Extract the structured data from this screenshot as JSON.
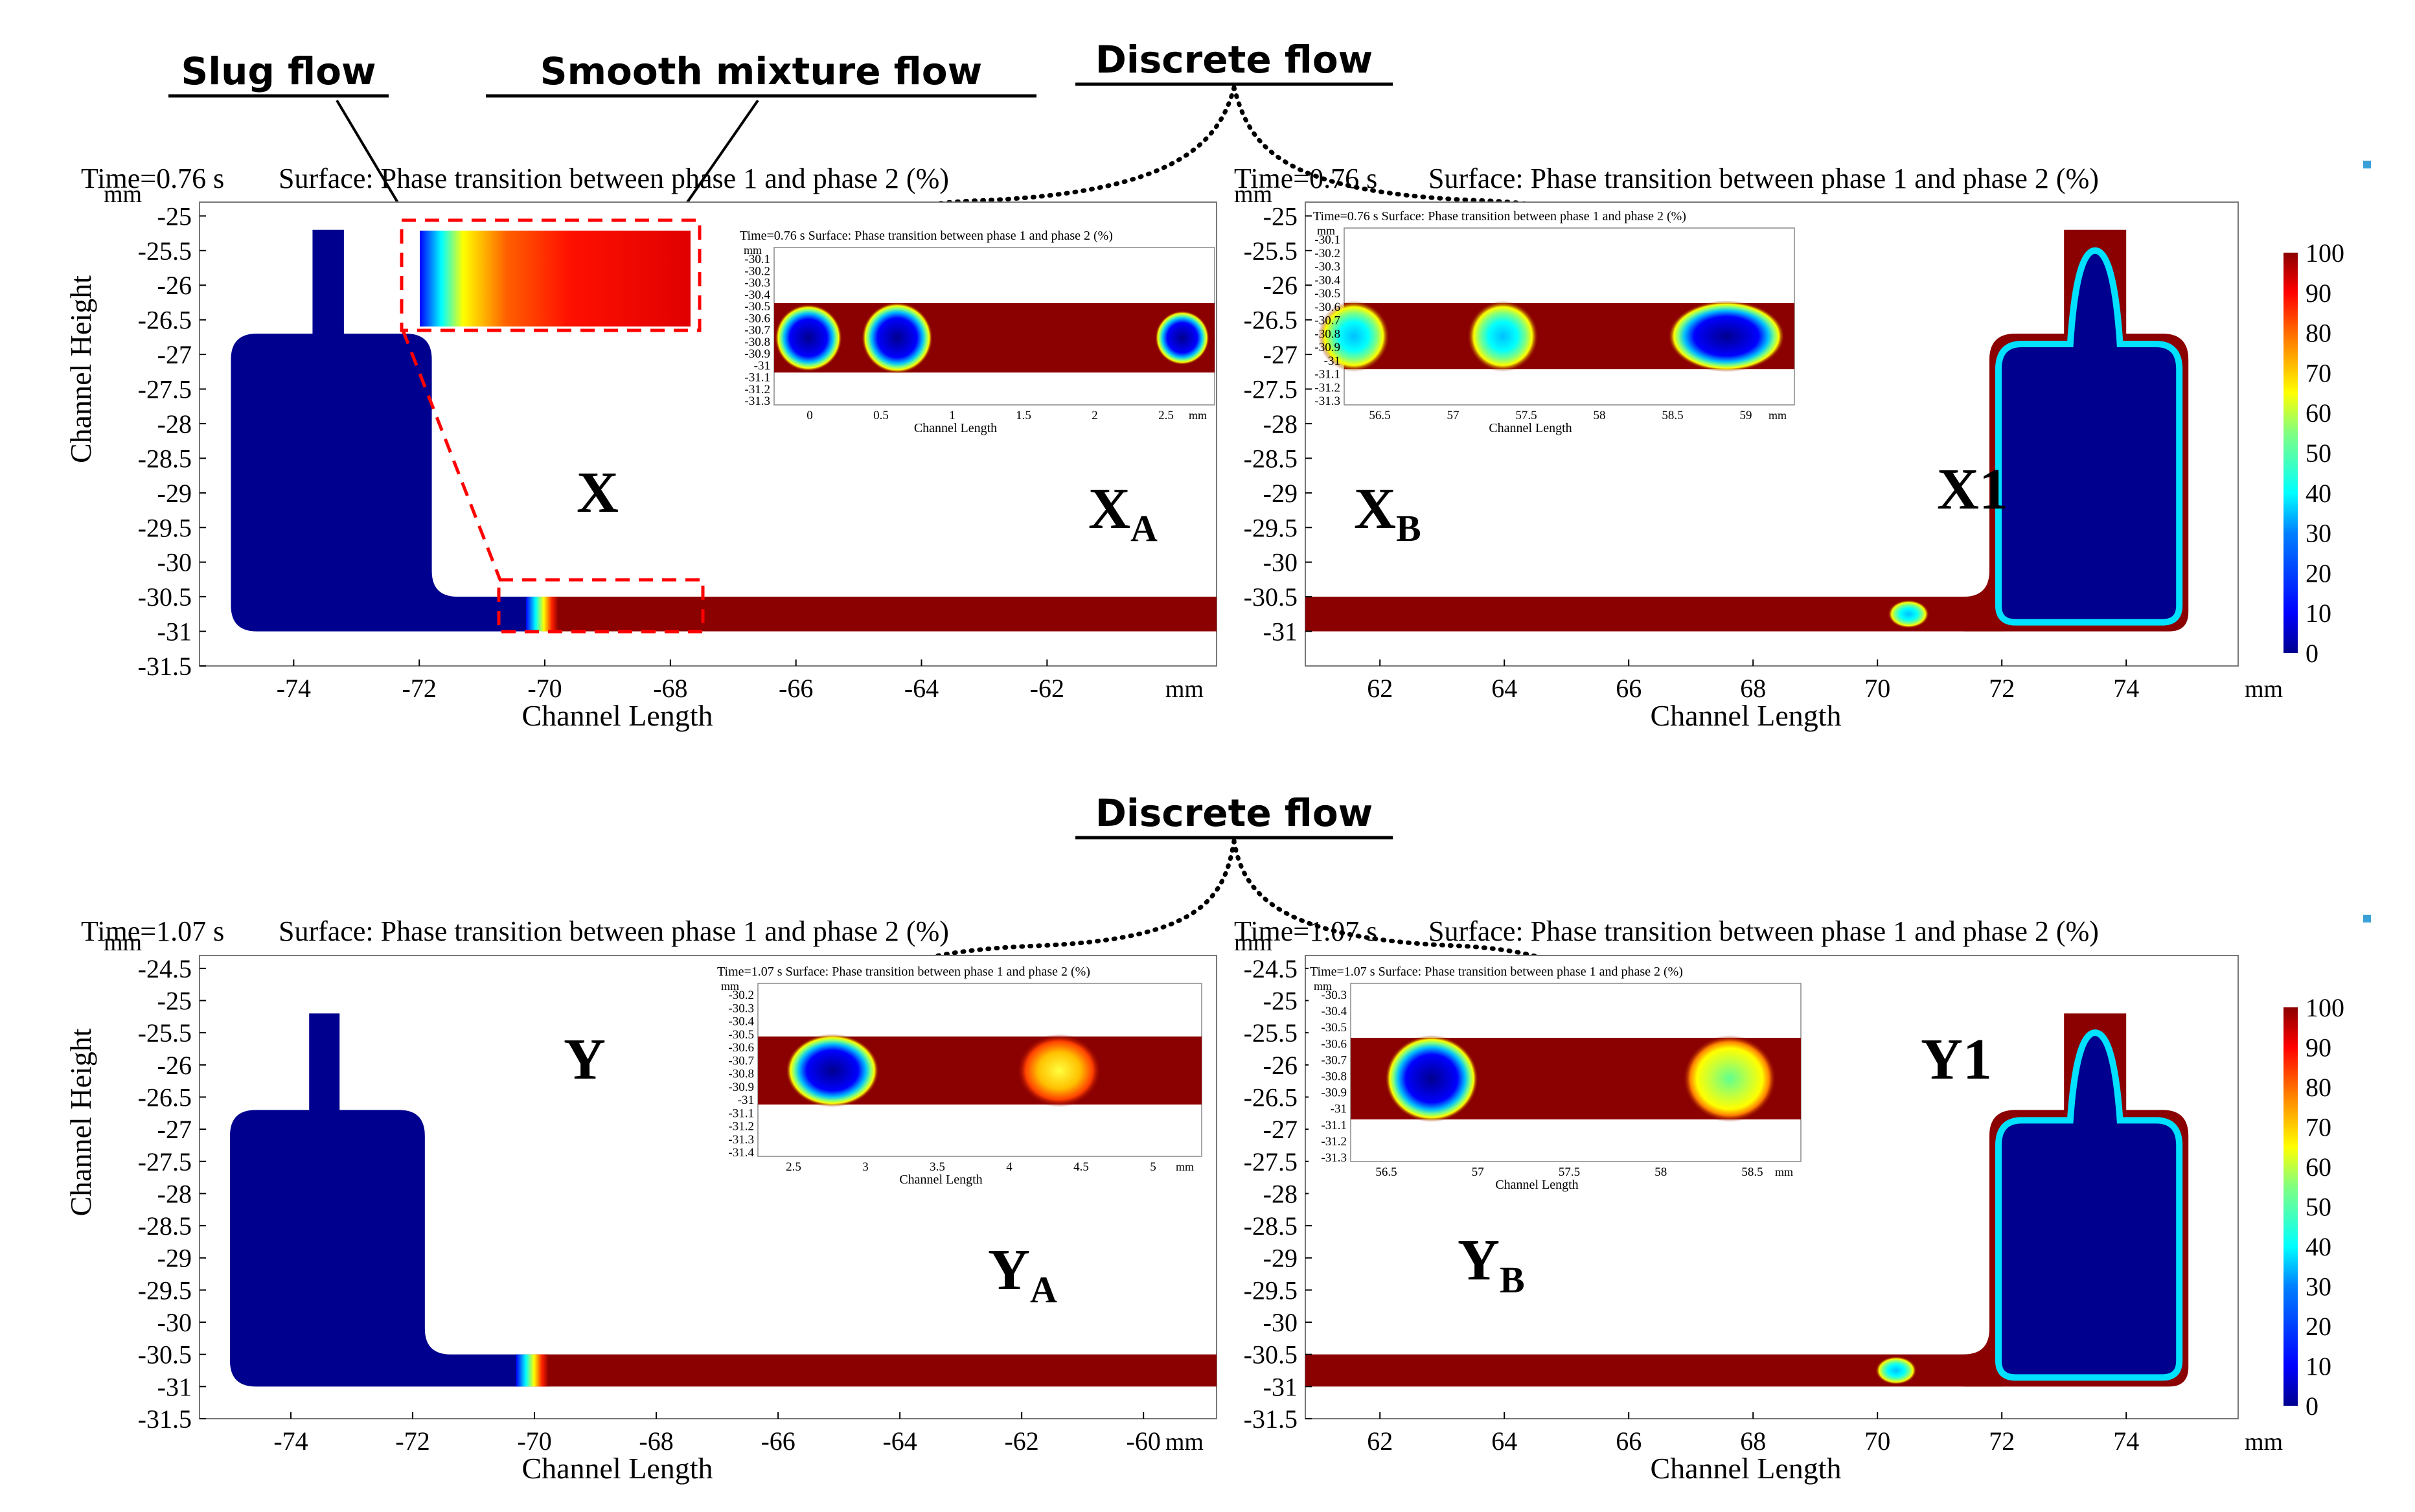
{
  "colors": {
    "phase_blue": "#00008f",
    "phase_red": "#8b0000",
    "colorbar": [
      "#00008f",
      "#0000ff",
      "#0080ff",
      "#00ffff",
      "#80ff80",
      "#ffff00",
      "#ff8000",
      "#ff0000",
      "#8b0000"
    ],
    "dash": "#ff0000"
  },
  "annotations": {
    "slug": "Slug flow",
    "smooth": "Smooth mixture  flow",
    "discrete_top": "Discrete flow",
    "discrete_bottom": "Discrete flow"
  },
  "chart_data": [
    {
      "type": "heatmap",
      "id": "top_left",
      "time_label": "Time=0.76 s",
      "title": "Surface: Phase transition between phase 1 and phase 2 (%)",
      "xlabel": "Channel Length",
      "ylabel": "Channel Height",
      "units": "mm",
      "xlim": [
        -75.5,
        -59.3
      ],
      "ylim": [
        -31.5,
        -24.8
      ],
      "xticks": [
        "-74",
        "-72",
        "-70",
        "-68",
        "-66",
        "-64",
        "-62"
      ],
      "yticks": [
        "-25",
        "-25.5",
        "-26",
        "-26.5",
        "-27",
        "-27.5",
        "-28",
        "-28.5",
        "-29",
        "-29.5",
        "-30",
        "-30.5",
        "-31",
        "-31.5"
      ],
      "panel_labels": {
        "main": "X",
        "sub": "A",
        "left": "X"
      }
    },
    {
      "type": "heatmap",
      "id": "top_right",
      "time_label": "Time=0.76 s",
      "title": "Surface: Phase transition between phase 1 and phase 2 (%)",
      "xlabel": "Channel Length",
      "units": "mm",
      "xlim": [
        60.8,
        75.8
      ],
      "ylim": [
        -31.5,
        -24.8
      ],
      "xticks": [
        "62",
        "64",
        "66",
        "68",
        "70",
        "72",
        "74"
      ],
      "yticks": [
        "-25",
        "-25.5",
        "-26",
        "-26.5",
        "-27",
        "-27.5",
        "-28",
        "-28.5",
        "-29",
        "-29.5",
        "-30",
        "-30.5",
        "-31"
      ],
      "panel_labels": {
        "main": "X1",
        "sub": "B",
        "left": "X"
      },
      "colorbar": {
        "ticks": [
          "100",
          "90",
          "80",
          "70",
          "60",
          "50",
          "40",
          "30",
          "20",
          "10",
          "0"
        ],
        "range": [
          0,
          100
        ]
      }
    },
    {
      "type": "heatmap",
      "id": "bottom_left",
      "time_label": "Time=1.07 s",
      "title": "Surface: Phase transition between phase 1 and phase 2 (%)",
      "xlabel": "Channel Length",
      "ylabel": "Channel Height",
      "units": "mm",
      "xlim": [
        -75.5,
        -58.8
      ],
      "ylim": [
        -31.5,
        -24.3
      ],
      "xticks": [
        "-74",
        "-72",
        "-70",
        "-68",
        "-66",
        "-64",
        "-62",
        "-60"
      ],
      "yticks": [
        "-24.5",
        "-25",
        "-25.5",
        "-26",
        "-26.5",
        "-27",
        "-27.5",
        "-28",
        "-28.5",
        "-29",
        "-29.5",
        "-30",
        "-30.5",
        "-31",
        "-31.5"
      ],
      "panel_labels": {
        "main": "Y",
        "sub": "A",
        "left": "Y"
      }
    },
    {
      "type": "heatmap",
      "id": "bottom_right",
      "time_label": "Time=1.07 s",
      "title": "Surface: Phase transition between phase 1 and phase 2 (%)",
      "xlabel": "Channel Length",
      "units": "mm",
      "xlim": [
        60.8,
        75.8
      ],
      "ylim": [
        -31.5,
        -24.3
      ],
      "xticks": [
        "62",
        "64",
        "66",
        "68",
        "70",
        "72",
        "74"
      ],
      "yticks": [
        "-24.5",
        "-25",
        "-25.5",
        "-26",
        "-26.5",
        "-27",
        "-27.5",
        "-28",
        "-28.5",
        "-29",
        "-29.5",
        "-30",
        "-30.5",
        "-31",
        "-31.5"
      ],
      "panel_labels": {
        "main": "Y1",
        "sub": "B",
        "left": "Y"
      },
      "colorbar": {
        "ticks": [
          "100",
          "90",
          "80",
          "70",
          "60",
          "50",
          "40",
          "30",
          "20",
          "10",
          "0"
        ],
        "range": [
          0,
          100
        ]
      }
    }
  ],
  "insets": [
    {
      "id": "inset_XA",
      "title": "Time=0.76 s  Surface: Phase transition between phase 1 and phase 2 (%)",
      "xlabel": "Channel Length",
      "units": "mm",
      "yticks": [
        "-30.1",
        "-30.2",
        "-30.3",
        "-30.4",
        "-30.5",
        "-30.6",
        "-30.7",
        "-30.8",
        "-30.9",
        "-31",
        "-31.1",
        "-31.2",
        "-31.3"
      ],
      "xticks": [
        "0",
        "0.5",
        "1",
        "1.5",
        "2",
        "2.5"
      ]
    },
    {
      "id": "inset_XB",
      "title": "Time=0.76 s  Surface: Phase transition between phase 1 and phase 2 (%)",
      "xlabel": "Channel Length",
      "units": "mm",
      "yticks": [
        "-30.1",
        "-30.2",
        "-30.3",
        "-30.4",
        "-30.5",
        "-30.6",
        "-30.7",
        "-30.8",
        "-30.9",
        "-31",
        "-31.1",
        "-31.2",
        "-31.3"
      ],
      "xticks": [
        "56.5",
        "57",
        "57.5",
        "58",
        "58.5",
        "59"
      ]
    },
    {
      "id": "inset_YA",
      "title": "Time=1.07 s  Surface: Phase transition between phase 1 and phase 2 (%)",
      "xlabel": "Channel Length",
      "units": "mm",
      "yticks": [
        "-30.2",
        "-30.3",
        "-30.4",
        "-30.5",
        "-30.6",
        "-30.7",
        "-30.8",
        "-30.9",
        "-31",
        "-31.1",
        "-31.2",
        "-31.3",
        "-31.4"
      ],
      "xticks": [
        "2.5",
        "3",
        "3.5",
        "4",
        "4.5",
        "5"
      ]
    },
    {
      "id": "inset_YB",
      "title": "Time=1.07 s  Surface: Phase transition between phase 1 and phase 2 (%)",
      "xlabel": "Channel Length",
      "units": "mm",
      "yticks": [
        "-30.3",
        "-30.4",
        "-30.5",
        "-30.6",
        "-30.7",
        "-30.8",
        "-30.9",
        "-31",
        "-31.1",
        "-31.2",
        "-31.3"
      ],
      "xticks": [
        "56.5",
        "57",
        "57.5",
        "58",
        "58.5"
      ]
    }
  ]
}
